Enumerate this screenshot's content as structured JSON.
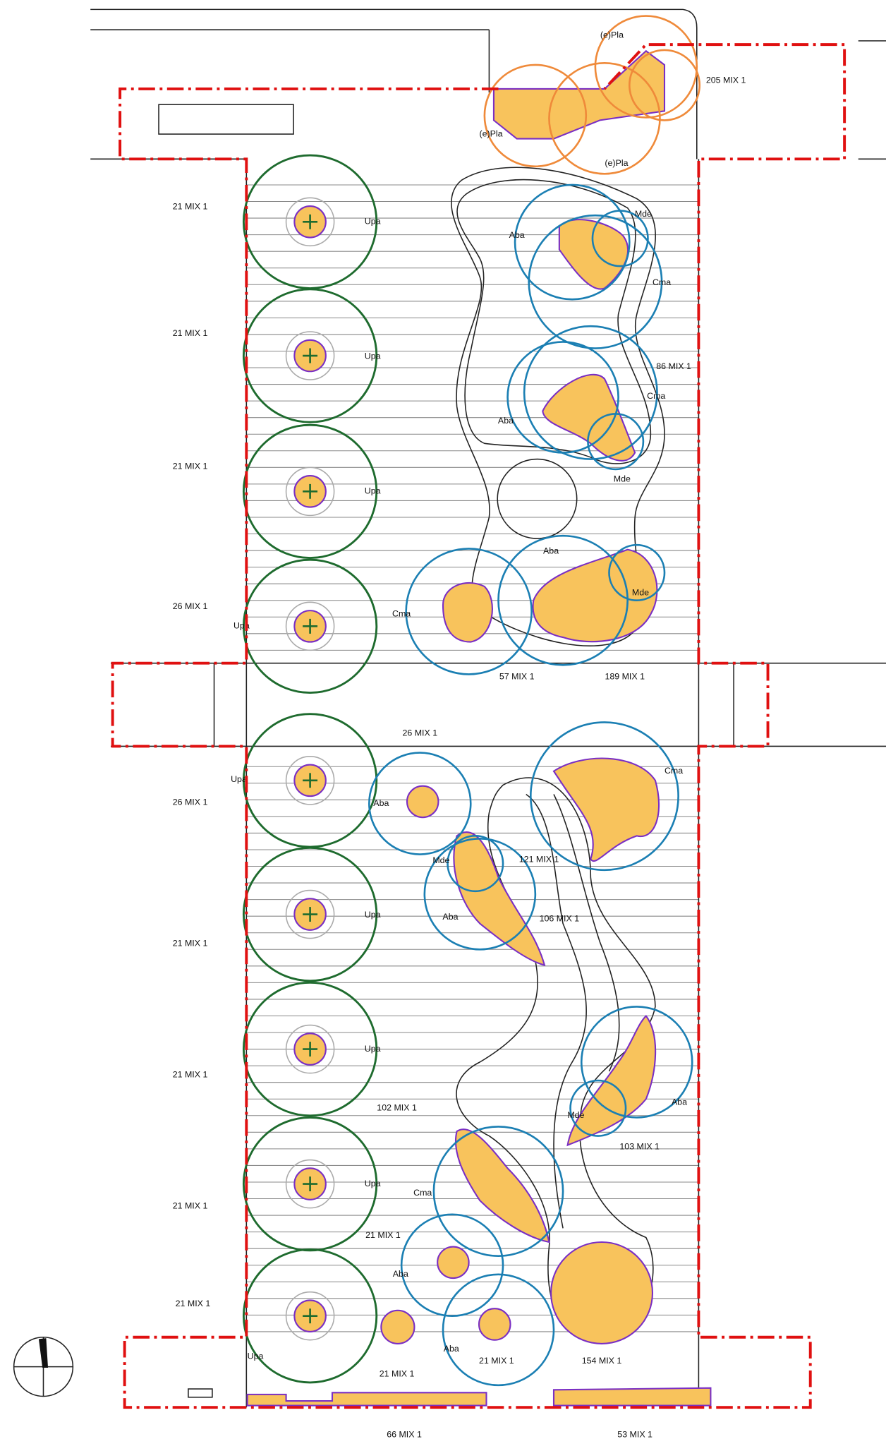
{
  "labels": [
    "(e)Pla",
    "(e)Pla",
    "(e)Pla",
    "205 MIX 1",
    "21 MIX 1",
    "Upa",
    "21 MIX 1",
    "Upa",
    "21 MIX 1",
    "Upa",
    "26 MIX 1",
    "Upa",
    "26 MIX 1",
    "Upa",
    "26 MIX 1",
    "21 MIX 1",
    "Upa",
    "21 MIX 1",
    "Upa",
    "21 MIX 1",
    "Upa",
    "21 MIX 1",
    "Upa",
    "21 MIX 1",
    "66 MIX 1",
    "21 MIX 1",
    "154 MIX 1",
    "53 MIX 1",
    "Aba",
    "Mde",
    "Cma",
    "86 MIX 1",
    "Cma",
    "Aba",
    "Mde",
    "Cma",
    "Aba",
    "Mde",
    "57 MIX 1",
    "189 MIX 1",
    "Aba",
    "Cma",
    "Mde",
    "121 MIX 1",
    "Aba",
    "106 MIX 1",
    "Aba",
    "Mde",
    "103 MIX 1",
    "102 MIX 1",
    "Cma",
    "21 MIX 1",
    "Aba",
    "Aba"
  ]
}
